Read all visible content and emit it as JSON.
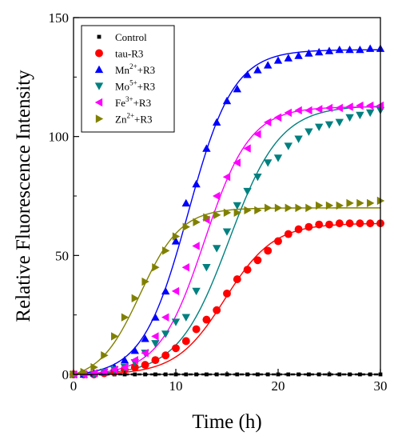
{
  "chart_data": {
    "type": "scatter",
    "xlabel": "Time (h)",
    "ylabel": "Relative Fluorescence Intensity",
    "xlim": [
      0,
      30
    ],
    "ylim": [
      0,
      150
    ],
    "x_ticks": [
      0,
      10,
      20,
      30
    ],
    "y_ticks": [
      0,
      50,
      100,
      150
    ],
    "grid": false,
    "legend_position": "top-left",
    "series": [
      {
        "name": "Control",
        "label_base": "Control",
        "label_sup": "",
        "label_suffix": "",
        "marker": "square",
        "color": "#000000",
        "fit": false,
        "x": [
          0,
          1,
          2,
          3,
          4,
          5,
          6,
          7,
          8,
          9,
          10,
          11,
          12,
          13,
          14,
          15,
          16,
          17,
          18,
          19,
          20,
          21,
          22,
          23,
          24,
          25,
          26,
          27,
          28,
          29,
          30
        ],
        "y": [
          0,
          0,
          0,
          0,
          0,
          0,
          0,
          0,
          0,
          0,
          0,
          0,
          0,
          0,
          0,
          0,
          0,
          0,
          0,
          0,
          0,
          0,
          0,
          0,
          0,
          0,
          0,
          0,
          0,
          0,
          0
        ]
      },
      {
        "name": "tau-R3",
        "label_base": "tau-R3",
        "label_sup": "",
        "label_suffix": "",
        "marker": "circle",
        "color": "#ff0000",
        "fit": true,
        "fit_params": {
          "A": 63.5,
          "x0": 14.8,
          "k": 0.42
        },
        "x": [
          0,
          1,
          2,
          3,
          4,
          5,
          6,
          7,
          8,
          9,
          10,
          11,
          12,
          13,
          14,
          15,
          16,
          17,
          18,
          19,
          20,
          21,
          22,
          23,
          24,
          25,
          26,
          27,
          28,
          29,
          30
        ],
        "y": [
          0,
          0,
          0,
          0.5,
          1,
          2,
          3,
          4,
          6,
          8,
          11,
          14,
          19,
          23,
          27,
          34,
          40,
          44,
          48,
          52,
          56,
          59,
          61,
          62,
          63,
          63,
          63.5,
          63.5,
          63.5,
          63.5,
          63.5
        ]
      },
      {
        "name": "Mn2+ +R3",
        "label_base": "Mn",
        "label_sup": "2+",
        "label_suffix": "+R3",
        "marker": "triangle-up",
        "color": "#0000ff",
        "fit": true,
        "fit_params": {
          "A": 136.5,
          "x0": 11.2,
          "k": 0.45
        },
        "x": [
          0,
          1,
          2,
          3,
          4,
          5,
          6,
          7,
          8,
          9,
          10,
          11,
          12,
          13,
          14,
          15,
          16,
          17,
          18,
          19,
          20,
          21,
          22,
          23,
          24,
          25,
          26,
          27,
          28,
          29,
          30
        ],
        "y": [
          0,
          0,
          0.5,
          1,
          3,
          6,
          10,
          15,
          24,
          35,
          56,
          72,
          80,
          95,
          106,
          115,
          120,
          126,
          128,
          130,
          132,
          133,
          134,
          135,
          135.5,
          136,
          136.5,
          136.5,
          136.5,
          137,
          137
        ]
      },
      {
        "name": "Mo5+ +R3",
        "label_base": "Mo",
        "label_sup": "5+",
        "label_suffix": "+R3",
        "marker": "triangle-down",
        "color": "#008080",
        "fit": true,
        "fit_params": {
          "A": 113,
          "x0": 15.2,
          "k": 0.4
        },
        "x": [
          0,
          1,
          2,
          3,
          4,
          5,
          6,
          7,
          8,
          9,
          10,
          11,
          12,
          13,
          14,
          15,
          16,
          17,
          18,
          19,
          20,
          21,
          22,
          23,
          24,
          25,
          26,
          27,
          28,
          29,
          30
        ],
        "y": [
          0,
          0,
          0,
          1,
          2,
          3,
          5,
          9,
          13,
          17,
          22,
          24,
          35,
          45,
          53,
          60,
          71,
          77,
          83,
          89,
          91,
          96,
          99,
          102,
          104,
          105,
          106,
          108,
          109,
          110,
          111
        ]
      },
      {
        "name": "Fe3+ +R3",
        "label_base": "Fe",
        "label_sup": "3+",
        "label_suffix": "+R3",
        "marker": "triangle-left",
        "color": "#ff00ff",
        "fit": true,
        "fit_params": {
          "A": 112.5,
          "x0": 12.8,
          "k": 0.45
        },
        "x": [
          0,
          1,
          2,
          3,
          4,
          5,
          6,
          7,
          8,
          9,
          10,
          11,
          12,
          13,
          14,
          15,
          16,
          17,
          18,
          19,
          20,
          21,
          22,
          23,
          24,
          25,
          26,
          27,
          28,
          29,
          30
        ],
        "y": [
          0,
          0,
          0.5,
          1,
          2,
          3,
          6,
          9,
          16,
          24,
          35,
          45,
          54,
          65,
          75,
          83,
          89,
          95,
          101,
          106,
          108,
          110,
          111,
          111,
          111.5,
          112,
          112,
          112.5,
          113,
          113,
          113
        ]
      },
      {
        "name": "Zn2+ +R3",
        "label_base": "Zn",
        "label_sup": "2+",
        "label_suffix": "+R3",
        "marker": "triangle-right",
        "color": "#808000",
        "fit": true,
        "fit_params": {
          "A": 70,
          "x0": 6.5,
          "k": 0.5
        },
        "x": [
          0,
          1,
          2,
          3,
          4,
          5,
          6,
          7,
          8,
          9,
          10,
          11,
          12,
          13,
          14,
          15,
          16,
          17,
          18,
          19,
          20,
          21,
          22,
          23,
          24,
          25,
          26,
          27,
          28,
          29,
          30
        ],
        "y": [
          0,
          1,
          3,
          8,
          16,
          24,
          32,
          39,
          45,
          52,
          58,
          62,
          64,
          66,
          67,
          68,
          68,
          69,
          69,
          70,
          70,
          70,
          70,
          70,
          71,
          71,
          71,
          72,
          72,
          72,
          73
        ]
      }
    ]
  }
}
